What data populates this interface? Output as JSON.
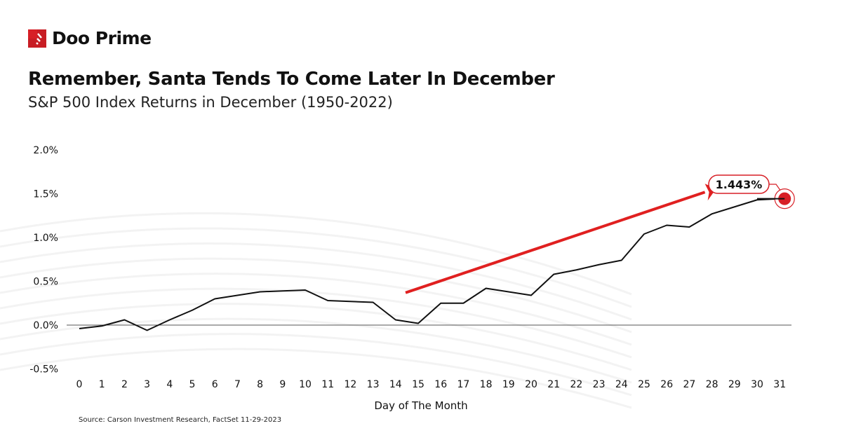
{
  "brand": {
    "name": "Doo Prime",
    "color": "#d71f26"
  },
  "header": {
    "title": "Remember, Santa Tends To Come Later In December",
    "subtitle": "S&P 500 Index Returns in December (1950-2022)"
  },
  "footer": {
    "source": "Source: Carson Investment Research, FactSet 11-29-2023"
  },
  "chart_data": {
    "type": "line",
    "title": "Remember, Santa Tends To Come Later In December",
    "subtitle": "S&P 500 Index Returns in December (1950-2022)",
    "xlabel": "Day of The Month",
    "ylabel": "",
    "x": [
      0,
      1,
      2,
      3,
      4,
      5,
      6,
      7,
      8,
      9,
      10,
      11,
      12,
      13,
      14,
      15,
      16,
      17,
      18,
      19,
      20,
      21,
      22,
      23,
      24,
      25,
      26,
      27,
      28,
      29,
      30,
      31
    ],
    "y": [
      -0.04,
      -0.01,
      0.06,
      -0.06,
      0.06,
      0.17,
      0.3,
      0.34,
      0.38,
      0.39,
      0.4,
      0.28,
      0.27,
      0.26,
      0.06,
      0.02,
      0.25,
      0.25,
      0.42,
      0.38,
      0.34,
      0.58,
      0.63,
      0.69,
      0.74,
      1.04,
      1.14,
      1.12,
      1.27,
      1.35,
      1.43,
      1.443
    ],
    "ylim": [
      -0.5,
      2.0
    ],
    "yticks": [
      "-0.5%",
      "0.0%",
      "0.5%",
      "1.0%",
      "1.5%",
      "2.0%"
    ],
    "ytick_values": [
      -0.5,
      0,
      0.5,
      1.0,
      1.5,
      2.0
    ],
    "xticks": [
      "0",
      "1",
      "2",
      "3",
      "4",
      "5",
      "6",
      "7",
      "8",
      "9",
      "10",
      "11",
      "12",
      "13",
      "14",
      "15",
      "16",
      "17",
      "18",
      "19",
      "20",
      "21",
      "22",
      "23",
      "24",
      "25",
      "26",
      "27",
      "28",
      "29",
      "30",
      "31"
    ],
    "grid": false,
    "line_color": "#111111",
    "annotation": {
      "text": "1.443%",
      "x": 31,
      "y": 1.443,
      "color": "#d71f26"
    },
    "trend_arrow": {
      "from_x": 15,
      "to_x": 28,
      "color": "#e02020"
    }
  }
}
